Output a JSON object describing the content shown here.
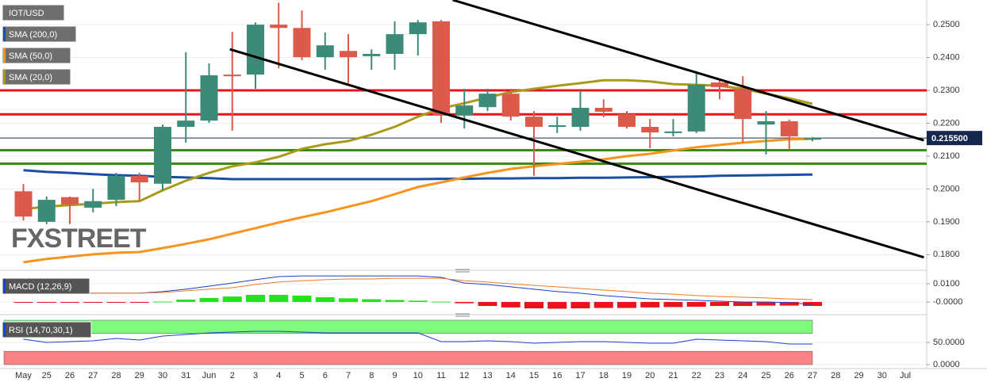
{
  "chart_data": [
    {
      "type": "candlestick",
      "title": "IOT/USD",
      "watermark": "FXSTREET",
      "categories": [
        "May",
        "25",
        "26",
        "27",
        "28",
        "29",
        "30",
        "31",
        "Jun",
        "2",
        "3",
        "4",
        "5",
        "6",
        "7",
        "8",
        "9",
        "10",
        "11",
        "12",
        "13",
        "14",
        "15",
        "16",
        "17",
        "18",
        "19",
        "20",
        "21",
        "22",
        "23",
        "24",
        "25",
        "26",
        "27",
        "28",
        "29",
        "30",
        "Jul"
      ],
      "open": [
        0.1993,
        0.19,
        0.1975,
        0.1943,
        0.1967,
        0.204,
        0.2016,
        0.2189,
        0.2208,
        0.2348,
        0.2348,
        0.25,
        0.249,
        0.2401,
        0.242,
        0.2404,
        0.2411,
        0.2471,
        0.251,
        0.2225,
        0.2249,
        0.229,
        0.222,
        0.2189,
        0.2189,
        0.2247,
        0.2228,
        0.2189,
        0.217,
        0.2175,
        0.2324,
        0.2305,
        0.2196,
        0.2206,
        0.215,
        null,
        null,
        null,
        null
      ],
      "high": [
        0.2015,
        0.1977,
        0.1977,
        0.2,
        0.2049,
        0.2049,
        0.2196,
        0.2416,
        0.2382,
        0.2478,
        0.2507,
        0.2567,
        0.2543,
        0.2476,
        0.2471,
        0.2425,
        0.251,
        0.2514,
        0.2514,
        0.2305,
        0.2305,
        0.2305,
        0.2237,
        0.222,
        0.23,
        0.2273,
        0.2237,
        0.2213,
        0.2213,
        0.2358,
        0.2329,
        0.2343,
        0.2237,
        0.2211,
        0.2158,
        null,
        null,
        null,
        null
      ],
      "low": [
        0.1904,
        0.1893,
        0.1893,
        0.1929,
        0.1948,
        0.1963,
        0.1996,
        0.2141,
        0.2201,
        0.2177,
        0.2305,
        0.2367,
        0.2392,
        0.2363,
        0.2322,
        0.2363,
        0.2363,
        0.2406,
        0.2201,
        0.2184,
        0.2237,
        0.2208,
        0.204,
        0.217,
        0.2177,
        0.2218,
        0.2184,
        0.2124,
        0.216,
        0.217,
        0.2273,
        0.2141,
        0.2105,
        0.2122,
        0.2145,
        null,
        null,
        null,
        null
      ],
      "close": [
        0.1916,
        0.1967,
        0.1953,
        0.1963,
        0.204,
        0.202,
        0.2189,
        0.2208,
        0.2346,
        0.2343,
        0.25,
        0.249,
        0.2401,
        0.2437,
        0.2401,
        0.2411,
        0.2471,
        0.2507,
        0.2225,
        0.2254,
        0.229,
        0.222,
        0.2189,
        0.2194,
        0.2247,
        0.2235,
        0.2189,
        0.2172,
        0.2175,
        0.2317,
        0.231,
        0.2213,
        0.2206,
        0.216,
        0.2155,
        null,
        null,
        null,
        null
      ],
      "up_color": "#3c8a78",
      "down_color": "#dc5a4b",
      "series": [
        {
          "name": "SMA (200,0)",
          "color": "#1b4fa3",
          "values": [
            0.2057,
            0.2052,
            0.2049,
            0.2045,
            0.2042,
            0.204,
            0.2037,
            0.2035,
            0.2033,
            0.203,
            0.203,
            0.203,
            0.203,
            0.203,
            0.203,
            0.203,
            0.203,
            0.203,
            0.2031,
            0.2031,
            0.2032,
            0.2032,
            0.2033,
            0.2033,
            0.2034,
            0.2034,
            0.2035,
            0.2036,
            0.2037,
            0.2038,
            0.204,
            0.2041,
            0.2042,
            0.2043,
            0.2044,
            null,
            null,
            null,
            null
          ]
        },
        {
          "name": "SMA (50,0)",
          "color": "#f7941d",
          "values": [
            0.1777,
            0.1787,
            0.1794,
            0.1801,
            0.1806,
            0.1808,
            0.182,
            0.1833,
            0.1847,
            0.1864,
            0.1881,
            0.1898,
            0.1914,
            0.1929,
            0.1946,
            0.1963,
            0.1984,
            0.2006,
            0.202,
            0.2035,
            0.2049,
            0.2061,
            0.2069,
            0.2076,
            0.2083,
            0.209,
            0.21,
            0.2107,
            0.2117,
            0.2127,
            0.2134,
            0.2141,
            0.2146,
            0.2151,
            0.2153,
            null,
            null,
            null,
            null
          ]
        },
        {
          "name": "SMA (20,0)",
          "color": "#a99a1c",
          "values": [
            0.1939,
            0.1946,
            0.1951,
            0.1955,
            0.196,
            0.1963,
            0.1996,
            0.2025,
            0.2049,
            0.2069,
            0.2081,
            0.2098,
            0.2122,
            0.2136,
            0.2146,
            0.2165,
            0.2189,
            0.222,
            0.2245,
            0.2261,
            0.2278,
            0.2295,
            0.2305,
            0.2314,
            0.2322,
            0.2331,
            0.2331,
            0.2327,
            0.2319,
            0.2317,
            0.2314,
            0.2305,
            0.229,
            0.2276,
            0.2259,
            null,
            null,
            null,
            null
          ]
        }
      ],
      "hlines": [
        {
          "value": 0.23,
          "color": "#e8141c"
        },
        {
          "value": 0.2227,
          "color": "#e8141c"
        },
        {
          "value": 0.2118,
          "color": "#3a8a16"
        },
        {
          "value": 0.2077,
          "color": "#3a8a16"
        }
      ],
      "trendlines": [
        {
          "x": [
            18.5,
            38.8
          ],
          "values": [
            0.2575,
            0.2148
          ],
          "color": "#000000"
        },
        {
          "x": [
            8.9,
            38.8
          ],
          "values": [
            0.2425,
            0.1792
          ],
          "color": "#000000"
        }
      ],
      "last_price": {
        "value": 0.2155,
        "label": "0.215500"
      },
      "ylim": [
        0.1755,
        0.2575
      ],
      "yticks": [
        {
          "value": 0.18,
          "label": "0.1800"
        },
        {
          "value": 0.19,
          "label": "0.1900"
        },
        {
          "value": 0.2,
          "label": "0.2000"
        },
        {
          "value": 0.21,
          "label": "0.2100"
        },
        {
          "value": 0.22,
          "label": "0.2200"
        },
        {
          "value": 0.23,
          "label": "0.2300"
        },
        {
          "value": 0.24,
          "label": "0.2400"
        },
        {
          "value": 0.25,
          "label": "0.2500"
        }
      ],
      "grid": true
    },
    {
      "type": "macd",
      "title": "MACD (12,26,9)",
      "series": [
        {
          "color": "#1b3fd0",
          "values": [
            0.0057,
            0.0048,
            0.0048,
            0.0048,
            0.0048,
            0.0048,
            0.0057,
            0.007,
            0.0087,
            0.0104,
            0.0122,
            0.0139,
            0.0143,
            0.0143,
            0.0143,
            0.0143,
            0.0143,
            0.0143,
            0.0135,
            0.0104,
            0.0096,
            0.0083,
            0.007,
            0.0057,
            0.0048,
            0.0035,
            0.0026,
            0.0017,
            0.0013,
            0.0009,
            0.0004,
            0.0,
            0.0,
            -0.0004,
            -0.0013,
            null,
            null,
            null,
            null
          ]
        },
        {
          "color": "#f07a2a",
          "values": [
            0.0048,
            0.0048,
            0.0048,
            0.0048,
            0.0048,
            0.0048,
            0.0052,
            0.0061,
            0.007,
            0.0078,
            0.0096,
            0.0109,
            0.0117,
            0.0122,
            0.0126,
            0.0126,
            0.013,
            0.013,
            0.013,
            0.0117,
            0.0109,
            0.01,
            0.0091,
            0.0083,
            0.0074,
            0.0065,
            0.0057,
            0.0048,
            0.0043,
            0.0035,
            0.003,
            0.0026,
            0.0022,
            0.0017,
            0.0013,
            null,
            null,
            null,
            null
          ]
        }
      ],
      "histogram": {
        "up_color": "#27e01f",
        "down_color": "#e8141c",
        "values": [
          -0.0002,
          -0.0002,
          -0.0002,
          -0.0002,
          -0.0002,
          -0.0002,
          0.0002,
          0.0013,
          0.0022,
          0.003,
          0.0039,
          0.0039,
          0.0035,
          0.0026,
          0.002,
          0.0015,
          0.0011,
          0.0007,
          0.0002,
          -0.0007,
          -0.0022,
          -0.003,
          -0.0035,
          -0.0037,
          -0.0035,
          -0.0033,
          -0.0033,
          -0.003,
          -0.0028,
          -0.0026,
          -0.0022,
          -0.0022,
          -0.002,
          -0.002,
          -0.0022,
          null,
          null,
          null,
          null
        ]
      },
      "ylim": [
        -0.0048,
        0.01565
      ],
      "yticks": [
        {
          "value": 0,
          "label": "-0.0000"
        },
        {
          "value": 0.01,
          "label": "0.0100"
        }
      ],
      "grid": true
    },
    {
      "type": "rsi",
      "title": "RSI (14,70,30,1)",
      "color": "#1b3fd0",
      "values": [
        57.1,
        50,
        51.8,
        53.6,
        58.9,
        55.4,
        64.3,
        67.9,
        71.4,
        73.2,
        75,
        75,
        73.2,
        71.4,
        71.4,
        71.4,
        71.4,
        71.4,
        51.8,
        51.8,
        53.6,
        51.8,
        48.2,
        50,
        51.8,
        51.8,
        50,
        48.2,
        48.2,
        57.1,
        55.4,
        53.6,
        51.8,
        46.4,
        46.4,
        null,
        null,
        null,
        null
      ],
      "bands": [
        {
          "range": [
            70,
            100
          ],
          "color": "#7efb7b"
        },
        {
          "range": [
            0,
            30
          ],
          "color": "#fb8282"
        }
      ],
      "ylim": [
        -3.6,
        103.6
      ],
      "yticks": [
        {
          "value": 0,
          "label": "0.0000"
        },
        {
          "value": 50,
          "label": "50.0000"
        }
      ],
      "grid": true
    }
  ]
}
